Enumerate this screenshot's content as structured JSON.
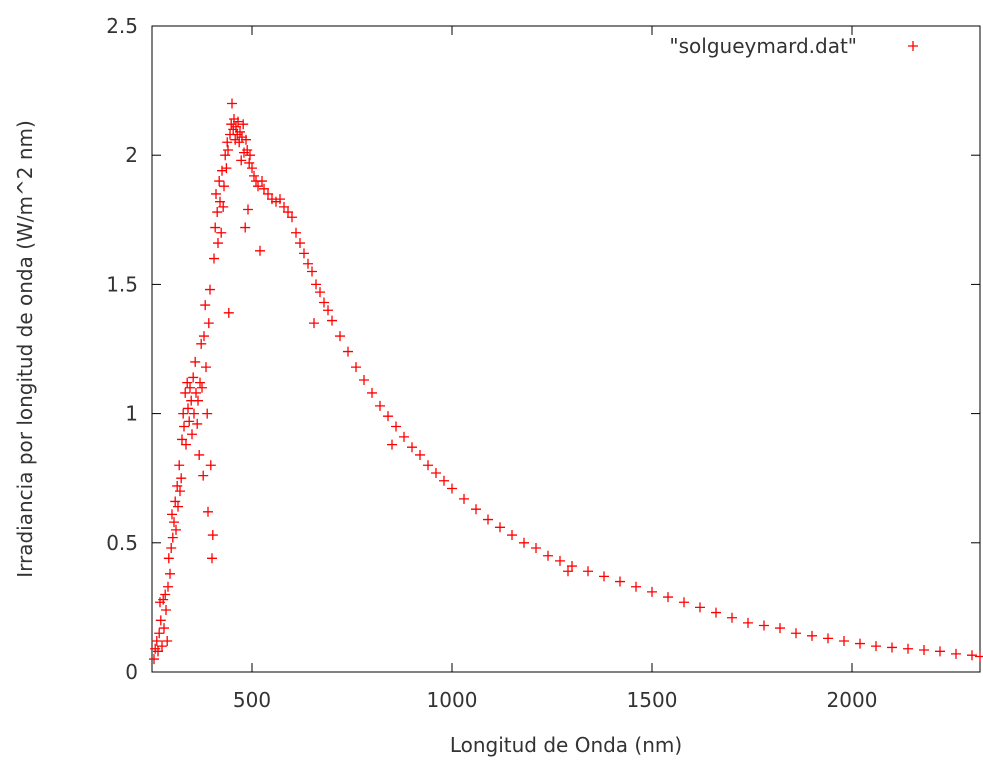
{
  "chart_data": {
    "type": "scatter",
    "xlabel": "Longitud de Onda (nm)",
    "ylabel": "Irradiancia por longitud de onda (W/m^2 nm)",
    "xlim": [
      250,
      2320
    ],
    "ylim": [
      0,
      2.5
    ],
    "xticks": [
      500,
      1000,
      1500,
      2000
    ],
    "xtick_labels": [
      "500",
      "1000",
      "1500",
      "2000"
    ],
    "yticks": [
      0,
      0.5,
      1,
      1.5,
      2,
      2.5
    ],
    "ytick_labels": [
      "0",
      "0.5",
      "1",
      "1.5",
      "2",
      "2.5"
    ],
    "grid": false,
    "legend_position": "top-right",
    "marker": "+",
    "series": [
      {
        "name": "\"solgueymard.dat\"",
        "color": "#ff0000",
        "points": [
          [
            255,
            0.05
          ],
          [
            258,
            0.09
          ],
          [
            262,
            0.12
          ],
          [
            265,
            0.08
          ],
          [
            268,
            0.15
          ],
          [
            270,
            0.27
          ],
          [
            272,
            0.2
          ],
          [
            275,
            0.1
          ],
          [
            278,
            0.28
          ],
          [
            280,
            0.17
          ],
          [
            283,
            0.3
          ],
          [
            285,
            0.24
          ],
          [
            288,
            0.12
          ],
          [
            290,
            0.33
          ],
          [
            292,
            0.44
          ],
          [
            295,
            0.38
          ],
          [
            298,
            0.48
          ],
          [
            300,
            0.61
          ],
          [
            302,
            0.52
          ],
          [
            305,
            0.58
          ],
          [
            308,
            0.66
          ],
          [
            310,
            0.55
          ],
          [
            313,
            0.72
          ],
          [
            315,
            0.64
          ],
          [
            318,
            0.8
          ],
          [
            320,
            0.7
          ],
          [
            323,
            0.75
          ],
          [
            325,
            0.9
          ],
          [
            328,
            1.0
          ],
          [
            330,
            0.95
          ],
          [
            333,
            1.08
          ],
          [
            335,
            0.88
          ],
          [
            338,
            1.12
          ],
          [
            340,
            1.02
          ],
          [
            343,
            0.97
          ],
          [
            345,
            1.1
          ],
          [
            348,
            1.05
          ],
          [
            350,
            0.92
          ],
          [
            353,
            1.14
          ],
          [
            355,
            1.0
          ],
          [
            358,
            1.2
          ],
          [
            360,
            1.08
          ],
          [
            363,
            0.96
          ],
          [
            365,
            1.05
          ],
          [
            368,
            0.84
          ],
          [
            370,
            1.12
          ],
          [
            373,
            1.27
          ],
          [
            375,
            1.1
          ],
          [
            378,
            0.76
          ],
          [
            380,
            1.3
          ],
          [
            383,
            1.42
          ],
          [
            385,
            1.18
          ],
          [
            388,
            1.0
          ],
          [
            390,
            0.62
          ],
          [
            392,
            1.35
          ],
          [
            395,
            1.48
          ],
          [
            397,
            0.8
          ],
          [
            400,
            0.44
          ],
          [
            402,
            0.53
          ],
          [
            405,
            1.6
          ],
          [
            408,
            1.72
          ],
          [
            410,
            1.85
          ],
          [
            413,
            1.78
          ],
          [
            415,
            1.66
          ],
          [
            418,
            1.9
          ],
          [
            420,
            1.82
          ],
          [
            423,
            1.7
          ],
          [
            425,
            1.94
          ],
          [
            428,
            1.8
          ],
          [
            430,
            1.88
          ],
          [
            433,
            2.0
          ],
          [
            436,
            1.95
          ],
          [
            438,
            2.05
          ],
          [
            440,
            2.02
          ],
          [
            442,
            1.39
          ],
          [
            445,
            2.08
          ],
          [
            448,
            2.12
          ],
          [
            450,
            2.2
          ],
          [
            453,
            2.1
          ],
          [
            455,
            2.14
          ],
          [
            458,
            2.06
          ],
          [
            460,
            2.11
          ],
          [
            463,
            2.08
          ],
          [
            465,
            2.13
          ],
          [
            468,
            2.05
          ],
          [
            470,
            2.09
          ],
          [
            473,
            1.98
          ],
          [
            475,
            2.07
          ],
          [
            478,
            2.12
          ],
          [
            480,
            2.01
          ],
          [
            483,
            1.72
          ],
          [
            485,
            2.06
          ],
          [
            488,
            2.02
          ],
          [
            490,
            1.79
          ],
          [
            493,
            1.97
          ],
          [
            495,
            2.0
          ],
          [
            500,
            1.95
          ],
          [
            505,
            1.92
          ],
          [
            510,
            1.9
          ],
          [
            515,
            1.88
          ],
          [
            520,
            1.63
          ],
          [
            525,
            1.9
          ],
          [
            530,
            1.87
          ],
          [
            540,
            1.85
          ],
          [
            550,
            1.83
          ],
          [
            560,
            1.82
          ],
          [
            570,
            1.83
          ],
          [
            580,
            1.8
          ],
          [
            590,
            1.78
          ],
          [
            600,
            1.76
          ],
          [
            610,
            1.7
          ],
          [
            620,
            1.66
          ],
          [
            630,
            1.62
          ],
          [
            640,
            1.58
          ],
          [
            650,
            1.55
          ],
          [
            655,
            1.35
          ],
          [
            660,
            1.5
          ],
          [
            670,
            1.47
          ],
          [
            680,
            1.43
          ],
          [
            690,
            1.4
          ],
          [
            700,
            1.36
          ],
          [
            720,
            1.3
          ],
          [
            740,
            1.24
          ],
          [
            760,
            1.18
          ],
          [
            780,
            1.13
          ],
          [
            800,
            1.08
          ],
          [
            820,
            1.03
          ],
          [
            840,
            0.99
          ],
          [
            850,
            0.88
          ],
          [
            860,
            0.95
          ],
          [
            880,
            0.91
          ],
          [
            900,
            0.87
          ],
          [
            920,
            0.84
          ],
          [
            940,
            0.8
          ],
          [
            960,
            0.77
          ],
          [
            980,
            0.74
          ],
          [
            1000,
            0.71
          ],
          [
            1030,
            0.67
          ],
          [
            1060,
            0.63
          ],
          [
            1090,
            0.59
          ],
          [
            1120,
            0.56
          ],
          [
            1150,
            0.53
          ],
          [
            1180,
            0.5
          ],
          [
            1210,
            0.48
          ],
          [
            1240,
            0.45
          ],
          [
            1270,
            0.43
          ],
          [
            1290,
            0.39
          ],
          [
            1300,
            0.41
          ],
          [
            1340,
            0.39
          ],
          [
            1380,
            0.37
          ],
          [
            1420,
            0.35
          ],
          [
            1460,
            0.33
          ],
          [
            1500,
            0.31
          ],
          [
            1540,
            0.29
          ],
          [
            1580,
            0.27
          ],
          [
            1620,
            0.25
          ],
          [
            1660,
            0.23
          ],
          [
            1700,
            0.21
          ],
          [
            1740,
            0.19
          ],
          [
            1780,
            0.18
          ],
          [
            1820,
            0.17
          ],
          [
            1860,
            0.15
          ],
          [
            1900,
            0.14
          ],
          [
            1940,
            0.13
          ],
          [
            1980,
            0.12
          ],
          [
            2020,
            0.11
          ],
          [
            2060,
            0.1
          ],
          [
            2100,
            0.095
          ],
          [
            2140,
            0.09
          ],
          [
            2180,
            0.085
          ],
          [
            2220,
            0.08
          ],
          [
            2260,
            0.07
          ],
          [
            2300,
            0.065
          ],
          [
            2320,
            0.06
          ]
        ]
      }
    ]
  }
}
